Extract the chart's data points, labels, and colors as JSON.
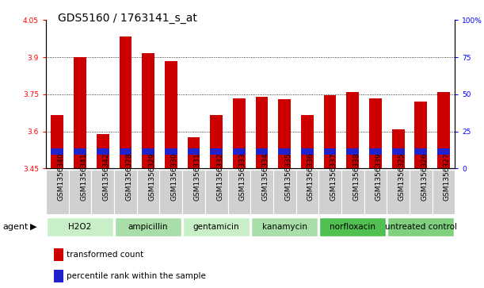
{
  "title": "GDS5160 / 1763141_s_at",
  "samples": [
    "GSM1356340",
    "GSM1356341",
    "GSM1356342",
    "GSM1356328",
    "GSM1356329",
    "GSM1356330",
    "GSM1356331",
    "GSM1356332",
    "GSM1356333",
    "GSM1356334",
    "GSM1356335",
    "GSM1356336",
    "GSM1356337",
    "GSM1356338",
    "GSM1356339",
    "GSM1356325",
    "GSM1356326",
    "GSM1356327"
  ],
  "red_values": [
    3.665,
    3.9,
    3.59,
    3.985,
    3.915,
    3.885,
    3.575,
    3.665,
    3.735,
    3.74,
    3.73,
    3.665,
    3.745,
    3.76,
    3.735,
    3.61,
    3.72,
    3.76
  ],
  "blue_bottom": [
    3.505,
    3.505,
    3.505,
    3.505,
    3.505,
    3.505,
    3.505,
    3.505,
    3.505,
    3.505,
    3.505,
    3.505,
    3.505,
    3.505,
    3.505,
    3.505,
    3.505,
    3.505
  ],
  "blue_height": [
    0.025,
    0.025,
    0.025,
    0.025,
    0.025,
    0.025,
    0.025,
    0.025,
    0.025,
    0.025,
    0.025,
    0.025,
    0.025,
    0.025,
    0.025,
    0.025,
    0.025,
    0.025
  ],
  "ymin": 3.45,
  "ymax": 4.05,
  "yticks": [
    3.45,
    3.6,
    3.75,
    3.9,
    4.05
  ],
  "ytick_labels": [
    "3.45",
    "3.6",
    "3.75",
    "3.9",
    "4.05"
  ],
  "right_yticks": [
    0,
    25,
    50,
    75,
    100
  ],
  "right_ytick_labels": [
    "0",
    "25",
    "50",
    "75",
    "100%"
  ],
  "grid_lines": [
    3.6,
    3.75,
    3.9
  ],
  "agents": [
    {
      "label": "H2O2",
      "start": 0,
      "end": 3,
      "color": "#c8efc8"
    },
    {
      "label": "ampicillin",
      "start": 3,
      "end": 6,
      "color": "#a8dfa8"
    },
    {
      "label": "gentamicin",
      "start": 6,
      "end": 9,
      "color": "#c8efc8"
    },
    {
      "label": "kanamycin",
      "start": 9,
      "end": 12,
      "color": "#a8dfa8"
    },
    {
      "label": "norfloxacin",
      "start": 12,
      "end": 15,
      "color": "#50c050"
    },
    {
      "label": "untreated control",
      "start": 15,
      "end": 18,
      "color": "#80d080"
    }
  ],
  "bar_color": "#cc0000",
  "blue_color": "#2222cc",
  "bar_width": 0.55,
  "legend_red": "transformed count",
  "legend_blue": "percentile rank within the sample",
  "title_fontsize": 10,
  "tick_fontsize": 6.5,
  "agent_fontsize": 7.5,
  "label_fontsize": 7.5
}
